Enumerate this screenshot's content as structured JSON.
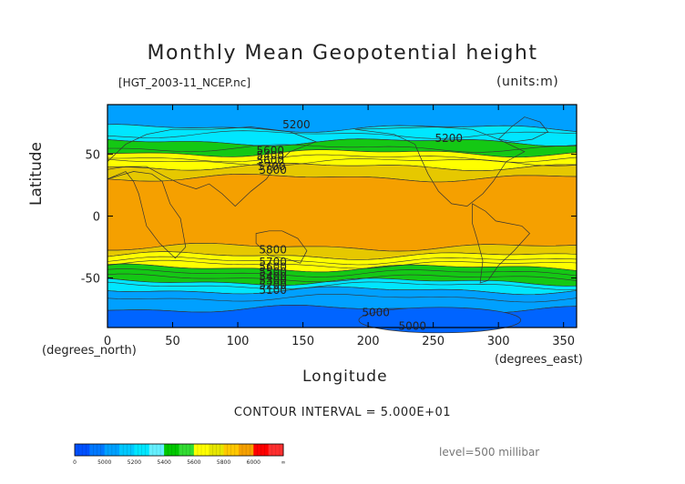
{
  "title": "Monthly Mean Geopotential height",
  "file_label": "[HGT_2003-11_NCEP.nc]",
  "units_label": "(units:m)",
  "ylabel": "Latitude",
  "ylabel_units": "(degrees_north)",
  "xlabel": "Longitude",
  "xlabel_units": "(degrees_east)",
  "contour_interval": "CONTOUR INTERVAL = 5.000E+01",
  "level_label": "level=500 millibar",
  "chart_data": {
    "type": "heatmap",
    "title": "Monthly Mean Geopotential height",
    "xlabel": "Longitude",
    "ylabel": "Latitude",
    "xlim": [
      0,
      360
    ],
    "ylim": [
      -90,
      90
    ],
    "x_ticks": [
      0,
      50,
      100,
      150,
      200,
      250,
      300,
      350
    ],
    "y_ticks": [
      50,
      0,
      -50
    ],
    "contour_interval": 50,
    "contour_labels": [
      {
        "text": "5200",
        "x": 145,
        "y": 74
      },
      {
        "text": "5200",
        "x": 262,
        "y": 63
      },
      {
        "text": "5600",
        "x": 125,
        "y": 53
      },
      {
        "text": "5400",
        "x": 125,
        "y": 49
      },
      {
        "text": "5600",
        "x": 125,
        "y": 45
      },
      {
        "text": "5700",
        "x": 126,
        "y": 40
      },
      {
        "text": "5800",
        "x": 127,
        "y": 37
      },
      {
        "text": "5800",
        "x": 127,
        "y": -27
      },
      {
        "text": "5700",
        "x": 127,
        "y": -37
      },
      {
        "text": "5600",
        "x": 127,
        "y": -41
      },
      {
        "text": "5500",
        "x": 127,
        "y": -45
      },
      {
        "text": "5400",
        "x": 127,
        "y": -49
      },
      {
        "text": "5300",
        "x": 127,
        "y": -52
      },
      {
        "text": "5200",
        "x": 127,
        "y": -56
      },
      {
        "text": "5100",
        "x": 127,
        "y": -60
      },
      {
        "text": "5000",
        "x": 206,
        "y": -78
      },
      {
        "text": "5000",
        "x": 234,
        "y": -89
      }
    ],
    "bands_north_to_south": [
      {
        "lat": [
          90,
          71
        ],
        "value_range": "<5200",
        "color": "#00a0ff"
      },
      {
        "lat": [
          71,
          60
        ],
        "value_range": "5200-5400",
        "color": "#00e6ff"
      },
      {
        "lat": [
          60,
          51
        ],
        "value_range": "5400-5600",
        "color": "#14c814"
      },
      {
        "lat": [
          51,
          40
        ],
        "value_range": "5600-5800",
        "color": "#ffff00"
      },
      {
        "lat": [
          40,
          31
        ],
        "value_range": "5800-5850",
        "color": "#e6c800"
      },
      {
        "lat": [
          31,
          -25
        ],
        "value_range": "5850-6000",
        "color": "#f5a000"
      },
      {
        "lat": [
          -25,
          -32
        ],
        "value_range": "5800-5850",
        "color": "#e6c800"
      },
      {
        "lat": [
          -32,
          -42
        ],
        "value_range": "5600-5800",
        "color": "#ffff00"
      },
      {
        "lat": [
          -42,
          -53
        ],
        "value_range": "5400-5600",
        "color": "#14c814"
      },
      {
        "lat": [
          -53,
          -60
        ],
        "value_range": "5200-5400",
        "color": "#00e6ff"
      },
      {
        "lat": [
          -60,
          -75
        ],
        "value_range": "5000-5200",
        "color": "#00a0ff"
      },
      {
        "lat": [
          -75,
          -90
        ],
        "value_range": "<5000",
        "color": "#0064ff"
      }
    ],
    "colorbar": {
      "labels": [
        "0",
        "5000",
        "5200",
        "5400",
        "5600",
        "5800",
        "6000",
        "∞"
      ],
      "colors": [
        "#0050ff",
        "#0078ff",
        "#00a0ff",
        "#00c8ff",
        "#00e6ff",
        "#64f0ff",
        "#00c800",
        "#32dc32",
        "#ffff00",
        "#e6e600",
        "#ffc800",
        "#f5a000",
        "#ff0000",
        "#ff3030"
      ]
    }
  }
}
